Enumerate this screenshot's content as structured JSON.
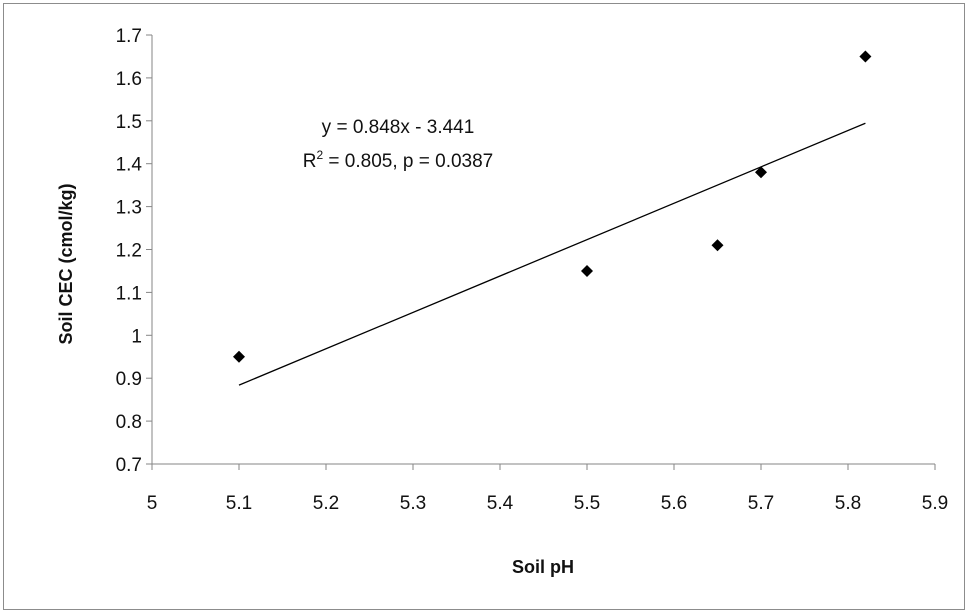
{
  "chart_data": {
    "type": "scatter",
    "title": "",
    "xlabel": "Soil pH",
    "ylabel": "Soil CEC (cmol/kg)",
    "xlim": [
      5,
      5.9
    ],
    "ylim": [
      0.7,
      1.7
    ],
    "x_ticks": [
      "5",
      "5.1",
      "5.2",
      "5.3",
      "5.4",
      "5.5",
      "5.6",
      "5.7",
      "5.8",
      "5.9"
    ],
    "y_ticks": [
      "0.7",
      "0.8",
      "0.9",
      "1",
      "1.1",
      "1.2",
      "1.3",
      "1.4",
      "1.5",
      "1.6",
      "1.7"
    ],
    "grid": false,
    "legend": "none",
    "marker": "diamond",
    "marker_color": "#000000",
    "series": [
      {
        "points": [
          {
            "x": 5.1,
            "y": 0.95
          },
          {
            "x": 5.5,
            "y": 1.15
          },
          {
            "x": 5.65,
            "y": 1.21
          },
          {
            "x": 5.7,
            "y": 1.38
          },
          {
            "x": 5.82,
            "y": 1.65
          }
        ]
      }
    ],
    "trendline": {
      "type": "linear",
      "slope": 0.848,
      "intercept": -3.441,
      "x_range": [
        5.1,
        5.82
      ],
      "color": "#000000"
    },
    "annotations": {
      "equation": "y = 0.848x - 3.441",
      "r2_prefix": "R",
      "r2_sup": "2",
      "r2_suffix": " = 0.805, p = 0.0387"
    }
  }
}
